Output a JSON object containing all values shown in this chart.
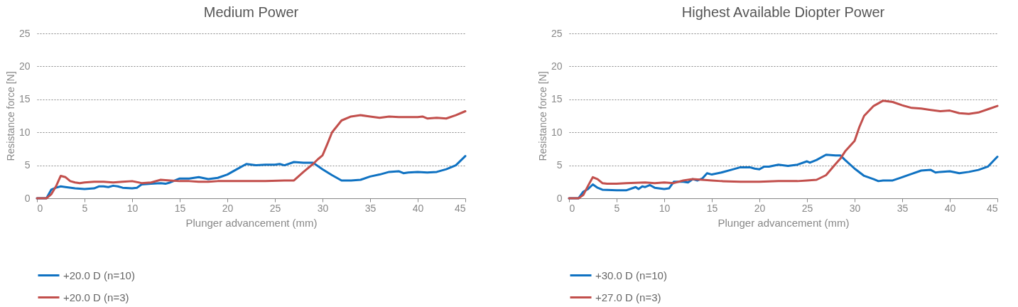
{
  "chart_data": [
    {
      "type": "line",
      "title": "Medium Power",
      "xlabel": "Plunger advancement (mm)",
      "ylabel": "Resistance force [N]",
      "xlim": [
        0,
        45
      ],
      "xticks": [
        0,
        5,
        10,
        15,
        20,
        25,
        30,
        35,
        40,
        45
      ],
      "ylim": [
        0,
        25
      ],
      "yticks": [
        0,
        5,
        10,
        15,
        20,
        25
      ],
      "grid": "y",
      "legend": "bottom",
      "series": [
        {
          "name": "+20.0 D (n=10)",
          "color": "#0f72c2",
          "x": [
            0,
            1,
            1.5,
            2,
            2.5,
            3,
            4,
            5,
            6,
            6.5,
            7,
            7.5,
            8,
            8.5,
            9,
            10,
            10.5,
            11,
            12,
            13,
            13.5,
            14,
            15,
            16,
            17,
            18,
            19,
            20,
            21,
            22,
            23,
            24,
            25,
            25.5,
            26,
            27,
            28,
            29,
            30,
            31,
            32,
            33,
            34,
            35,
            36,
            37,
            38,
            38.5,
            39,
            40,
            41,
            42,
            43,
            44,
            45
          ],
          "values": [
            0,
            0,
            1.3,
            1.6,
            1.8,
            1.7,
            1.5,
            1.4,
            1.5,
            1.8,
            1.8,
            1.7,
            1.9,
            1.8,
            1.6,
            1.5,
            1.6,
            2.1,
            2.2,
            2.3,
            2.2,
            2.4,
            3.0,
            3.0,
            3.2,
            2.9,
            3.1,
            3.6,
            4.4,
            5.2,
            5.0,
            5.1,
            5.1,
            5.2,
            5.0,
            5.5,
            5.4,
            5.4,
            4.4,
            3.5,
            2.7,
            2.7,
            2.8,
            3.3,
            3.6,
            4.0,
            4.1,
            3.8,
            3.9,
            4.0,
            3.9,
            4.0,
            4.4,
            5.0,
            6.4
          ]
        },
        {
          "name": "+20.0 D (n=3)",
          "color": "#c24f4c",
          "x": [
            0,
            1,
            1.5,
            2,
            2.5,
            3,
            3.5,
            4,
            4.5,
            5,
            6,
            7,
            8,
            9,
            10,
            11,
            12,
            13,
            14,
            15,
            16,
            17,
            18,
            19,
            20,
            22,
            24,
            26,
            27,
            28,
            29,
            29.5,
            30,
            30.5,
            31,
            32,
            33,
            34,
            35,
            36,
            37,
            38,
            39,
            40,
            40.5,
            41,
            42,
            43,
            44,
            45
          ],
          "values": [
            0,
            0,
            0.6,
            1.8,
            3.4,
            3.2,
            2.6,
            2.4,
            2.3,
            2.4,
            2.5,
            2.5,
            2.4,
            2.5,
            2.6,
            2.3,
            2.4,
            2.8,
            2.7,
            2.6,
            2.6,
            2.5,
            2.5,
            2.6,
            2.6,
            2.6,
            2.6,
            2.7,
            2.7,
            4.0,
            5.2,
            5.9,
            6.5,
            8.2,
            10.0,
            11.8,
            12.4,
            12.6,
            12.4,
            12.2,
            12.4,
            12.3,
            12.3,
            12.3,
            12.4,
            12.1,
            12.2,
            12.1,
            12.6,
            13.2
          ]
        }
      ]
    },
    {
      "type": "line",
      "title": "Highest Available Diopter Power",
      "xlabel": "Plunger advancement (mm)",
      "ylabel": "Resistance force [N]",
      "xlim": [
        0,
        45
      ],
      "xticks": [
        0,
        5,
        10,
        15,
        20,
        25,
        30,
        35,
        40,
        45
      ],
      "ylim": [
        0,
        25
      ],
      "yticks": [
        0,
        5,
        10,
        15,
        20,
        25
      ],
      "grid": "y",
      "legend": "bottom",
      "series": [
        {
          "name": "+30.0 D (n=10)",
          "color": "#0f72c2",
          "x": [
            0,
            1,
            1.5,
            2,
            2.5,
            3,
            3.5,
            5,
            6,
            7,
            7.3,
            7.7,
            8,
            8.5,
            9,
            10,
            10.5,
            11,
            12,
            12.5,
            13,
            13.5,
            14,
            14.5,
            15,
            16,
            17,
            18,
            19,
            19.5,
            20,
            20.5,
            21,
            22,
            23,
            24,
            25,
            25.3,
            26,
            27,
            28,
            28.5,
            29,
            30,
            31,
            32,
            32.5,
            33,
            34,
            35,
            36,
            37,
            38,
            38.5,
            39,
            40,
            41,
            42,
            43,
            44,
            45
          ],
          "values": [
            0,
            0,
            1.0,
            1.4,
            2.1,
            1.6,
            1.3,
            1.2,
            1.2,
            1.7,
            1.4,
            1.8,
            1.7,
            2.0,
            1.6,
            1.4,
            1.5,
            2.5,
            2.5,
            2.4,
            2.9,
            2.7,
            3.0,
            3.8,
            3.6,
            3.9,
            4.3,
            4.7,
            4.7,
            4.5,
            4.4,
            4.8,
            4.8,
            5.1,
            4.9,
            5.1,
            5.6,
            5.4,
            5.8,
            6.6,
            6.5,
            6.5,
            5.8,
            4.5,
            3.4,
            2.9,
            2.6,
            2.7,
            2.7,
            3.2,
            3.7,
            4.2,
            4.3,
            3.9,
            4.0,
            4.1,
            3.8,
            4.0,
            4.3,
            4.8,
            6.3
          ]
        },
        {
          "name": "+27.0 D (n=3)",
          "color": "#c24f4c",
          "x": [
            0,
            1,
            1.5,
            2,
            2.5,
            3,
            3.5,
            4,
            5,
            6,
            8,
            9,
            10,
            11,
            12,
            13,
            14,
            15,
            16,
            18,
            20,
            22,
            24,
            25,
            26,
            27,
            28,
            28.5,
            29,
            30,
            30.5,
            31,
            32,
            33,
            34,
            35,
            36,
            37,
            38,
            39,
            40,
            41,
            42,
            43,
            44,
            45
          ],
          "values": [
            0,
            0,
            0.5,
            1.9,
            3.2,
            2.9,
            2.3,
            2.2,
            2.2,
            2.3,
            2.4,
            2.3,
            2.4,
            2.3,
            2.7,
            2.9,
            2.8,
            2.7,
            2.6,
            2.5,
            2.5,
            2.6,
            2.6,
            2.7,
            2.8,
            3.5,
            5.2,
            6.0,
            7.1,
            8.7,
            10.8,
            12.5,
            14.0,
            14.8,
            14.6,
            14.1,
            13.7,
            13.6,
            13.4,
            13.2,
            13.3,
            12.9,
            12.8,
            13.0,
            13.5,
            14.0
          ]
        }
      ]
    }
  ]
}
